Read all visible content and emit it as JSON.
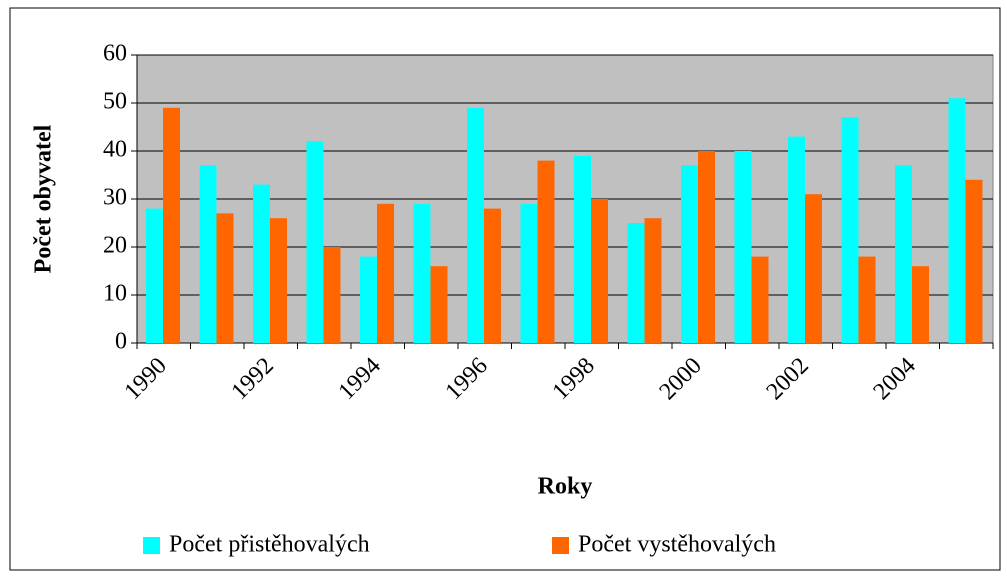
{
  "chart_data": {
    "type": "bar",
    "x_label": "Roky",
    "y_label": "Počet obyvatel",
    "categories": [
      "1990",
      null,
      "1992",
      null,
      "1994",
      null,
      "1996",
      null,
      "1998",
      null,
      "2000",
      null,
      "2002",
      null,
      "2004",
      null
    ],
    "series": [
      {
        "name": "Počet přistěhovalých",
        "color": "#00ffff",
        "values": [
          28,
          37,
          33,
          42,
          18,
          29,
          49,
          29,
          39,
          25,
          37,
          40,
          43,
          47,
          37,
          51
        ]
      },
      {
        "name": "Počet vystěhovalých",
        "color": "#ff6600",
        "values": [
          49,
          27,
          26,
          20,
          29,
          16,
          28,
          38,
          30,
          26,
          40,
          18,
          31,
          18,
          16,
          34
        ]
      }
    ],
    "ylim": [
      0,
      60
    ],
    "yticks": [
      0,
      10,
      20,
      30,
      40,
      50,
      60
    ],
    "grid": true,
    "plot_background": "#c0c0c0",
    "legend": "bottom"
  }
}
